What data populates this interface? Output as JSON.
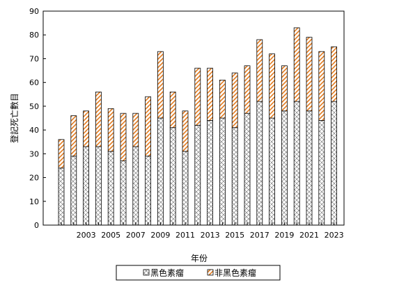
{
  "chart_data": {
    "type": "bar",
    "stacked": true,
    "title": "",
    "xlabel": "年份",
    "ylabel": "登記死亡數目",
    "ylim": [
      0,
      90
    ],
    "yticks": [
      0,
      10,
      20,
      30,
      40,
      50,
      60,
      70,
      80,
      90
    ],
    "grid": false,
    "legend_position": "bottom",
    "categories": [
      "2001",
      "2002",
      "2003",
      "2004",
      "2005",
      "2006",
      "2007",
      "2008",
      "2009",
      "2010",
      "2011",
      "2012",
      "2013",
      "2014",
      "2015",
      "2016",
      "2017",
      "2018",
      "2019",
      "2020",
      "2021",
      "2022",
      "2023"
    ],
    "x_tick_labels": [
      "2003",
      "2005",
      "2007",
      "2009",
      "2011",
      "2013",
      "2015",
      "2017",
      "2019",
      "2021",
      "2023"
    ],
    "series": [
      {
        "name": "黑色素瘤",
        "color": "#808080",
        "pattern": "crosshatch",
        "values": [
          24,
          29,
          33,
          33,
          31,
          27,
          33,
          29,
          45,
          41,
          31,
          42,
          44,
          45,
          41,
          47,
          52,
          45,
          48,
          52,
          48,
          44,
          52
        ]
      },
      {
        "name": "非黑色素瘤",
        "color": "#E07A1F",
        "pattern": "diagonal",
        "values": [
          12,
          17,
          15,
          23,
          18,
          20,
          14,
          25,
          28,
          15,
          17,
          24,
          22,
          16,
          23,
          20,
          26,
          27,
          19,
          31,
          31,
          29,
          23
        ]
      }
    ]
  }
}
